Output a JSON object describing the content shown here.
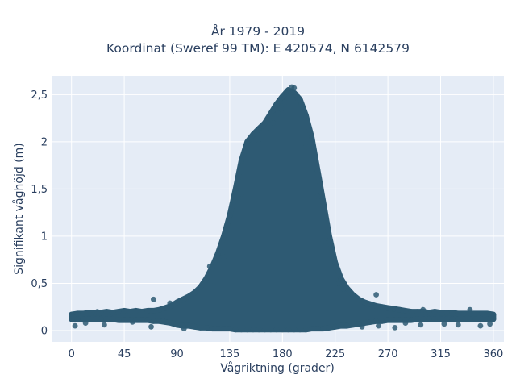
{
  "chart_data": {
    "type": "scatter",
    "title": "År 1979 - 2019",
    "subtitle": "Koordinat (Sweref 99 TM): E 420574, N 6142579",
    "xlabel": "Vågriktning (grader)",
    "ylabel": "Signifikant våghöjd (m)",
    "xlim": [
      -17,
      369
    ],
    "ylim": [
      -0.12,
      2.7
    ],
    "x_ticks": [
      0,
      45,
      90,
      135,
      180,
      225,
      270,
      315,
      360
    ],
    "x_tick_labels": [
      "0",
      "45",
      "90",
      "135",
      "180",
      "225",
      "270",
      "315",
      "360"
    ],
    "y_ticks": [
      0,
      0.5,
      1,
      1.5,
      2,
      2.5
    ],
    "y_tick_labels": [
      "0",
      "0,5",
      "1",
      "1,5",
      "2",
      "2,5"
    ],
    "grid": true,
    "marker_color": "#2e5a73",
    "background_color": "#e5ecf6",
    "series": [
      {
        "x": [
          0,
          5,
          10,
          15,
          20,
          25,
          30,
          35,
          40,
          45,
          50,
          55,
          60,
          65,
          70,
          75,
          80,
          85,
          90,
          95,
          100,
          105,
          110,
          115,
          120,
          125,
          130,
          135,
          140,
          145,
          150,
          155,
          160,
          165,
          170,
          175,
          180,
          185,
          190,
          195,
          200,
          205,
          210,
          215,
          220,
          225,
          230,
          235,
          240,
          245,
          250,
          255,
          260,
          265,
          270,
          275,
          280,
          285,
          290,
          295,
          300,
          305,
          310,
          315,
          320,
          325,
          330,
          335,
          340,
          345,
          350,
          355,
          360,
          0,
          5,
          10,
          15,
          20,
          25,
          30,
          35,
          40,
          45,
          50,
          55,
          60,
          65,
          70,
          75,
          80,
          85,
          90,
          95,
          100,
          105,
          110,
          115,
          120,
          125,
          130,
          135,
          140,
          145,
          150,
          155,
          160,
          165,
          170,
          175,
          180,
          185,
          190,
          195,
          200,
          205,
          210,
          215,
          220,
          225,
          230,
          235,
          240,
          245,
          250,
          255,
          260,
          265,
          270,
          275,
          280,
          285,
          290,
          295,
          300,
          305,
          310,
          315,
          320,
          325,
          330,
          335,
          340,
          345,
          350,
          355,
          360,
          188,
          190,
          185,
          186,
          182,
          192,
          176,
          179,
          166,
          172,
          193,
          196,
          170,
          200,
          130,
          210,
          145,
          160,
          118,
          215,
          228,
          122,
          232,
          70,
          260,
          84,
          300,
          22,
          340,
          3,
          12,
          28,
          52,
          68,
          78,
          96,
          104,
          248,
          262,
          276,
          285,
          298,
          318,
          330,
          349,
          357
        ],
        "y": [
          0.17,
          0.18,
          0.18,
          0.19,
          0.19,
          0.19,
          0.2,
          0.19,
          0.2,
          0.21,
          0.2,
          0.21,
          0.2,
          0.21,
          0.21,
          0.22,
          0.24,
          0.26,
          0.3,
          0.33,
          0.36,
          0.4,
          0.46,
          0.55,
          0.67,
          0.82,
          1.0,
          1.22,
          1.5,
          1.8,
          2.0,
          2.08,
          2.14,
          2.2,
          2.3,
          2.4,
          2.48,
          2.55,
          2.52,
          2.45,
          2.28,
          2.05,
          1.7,
          1.35,
          1.0,
          0.72,
          0.55,
          0.45,
          0.38,
          0.33,
          0.3,
          0.28,
          0.26,
          0.25,
          0.24,
          0.23,
          0.22,
          0.21,
          0.2,
          0.2,
          0.2,
          0.19,
          0.2,
          0.19,
          0.19,
          0.19,
          0.18,
          0.18,
          0.18,
          0.18,
          0.18,
          0.18,
          0.17,
          0.12,
          0.12,
          0.12,
          0.12,
          0.12,
          0.12,
          0.12,
          0.12,
          0.11,
          0.11,
          0.11,
          0.11,
          0.11,
          0.11,
          0.1,
          0.1,
          0.09,
          0.08,
          0.06,
          0.05,
          0.05,
          0.04,
          0.03,
          0.03,
          0.02,
          0.02,
          0.02,
          0.02,
          0.01,
          0.01,
          0.01,
          0.01,
          0.01,
          0.01,
          0.01,
          0.01,
          0.01,
          0.01,
          0.01,
          0.01,
          0.01,
          0.02,
          0.02,
          0.02,
          0.03,
          0.04,
          0.05,
          0.05,
          0.06,
          0.07,
          0.08,
          0.09,
          0.1,
          0.1,
          0.11,
          0.11,
          0.11,
          0.11,
          0.11,
          0.12,
          0.12,
          0.12,
          0.12,
          0.12,
          0.12,
          0.12,
          0.12,
          0.12,
          0.12,
          0.12,
          0.12,
          0.12,
          0.12,
          2.58,
          2.57,
          2.52,
          2.49,
          2.42,
          2.5,
          2.3,
          2.35,
          2.12,
          2.2,
          2.46,
          2.4,
          2.15,
          1.95,
          0.78,
          1.42,
          1.45,
          1.98,
          0.68,
          0.95,
          0.5,
          0.52,
          0.44,
          0.33,
          0.38,
          0.29,
          0.22,
          0.2,
          0.22,
          0.05,
          0.08,
          0.06,
          0.09,
          0.04,
          0.1,
          0.02,
          0.05,
          0.04,
          0.05,
          0.03,
          0.08,
          0.06,
          0.07,
          0.06,
          0.05,
          0.07
        ]
      }
    ]
  }
}
